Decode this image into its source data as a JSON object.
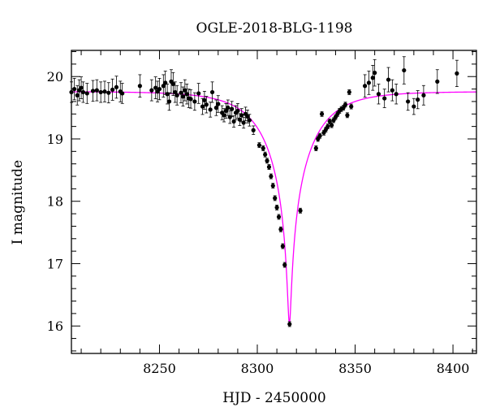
{
  "chart_data": {
    "type": "scatter",
    "title": "OGLE-2018-BLG-1198",
    "xlabel": "HJD - 2450000",
    "ylabel": "I magnitude",
    "xlim": [
      8205,
      8412
    ],
    "ylim": [
      20.42,
      15.56
    ],
    "y_inverted": true,
    "grid": false,
    "x_ticks": [
      8250,
      8300,
      8350,
      8400
    ],
    "y_ticks": [
      16,
      17,
      18,
      19,
      20
    ],
    "colors": {
      "points": "#000000",
      "model": "#ff00ff",
      "frame": "#000000"
    },
    "model": {
      "type": "microlensing-fit",
      "t0": 8316.4,
      "peak_mag": 16.03,
      "baseline_mag": 19.76
    },
    "series": [
      {
        "x": [
          8205,
          8206.5,
          8208,
          8209,
          8210,
          8211,
          8213,
          8216,
          8218,
          8220,
          8222,
          8224,
          8226,
          8228,
          8230,
          8231,
          8240,
          8246,
          8248,
          8249,
          8250,
          8252,
          8253,
          8254,
          8255,
          8256,
          8257,
          8258,
          8259,
          8261,
          8262,
          8263,
          8264,
          8265,
          8266,
          8268,
          8270,
          8272,
          8273,
          8274,
          8276,
          8277,
          8279,
          8280,
          8282,
          8283,
          8284,
          8285,
          8286,
          8287,
          8288,
          8289,
          8290,
          8291,
          8292,
          8293,
          8294,
          8295,
          8296,
          8298,
          8301,
          8303,
          8304,
          8305,
          8306,
          8307,
          8308,
          8309,
          8310,
          8311,
          8312,
          8313,
          8314,
          8316.5,
          8322,
          8330,
          8331,
          8332,
          8333,
          8334,
          8335,
          8336,
          8337,
          8338,
          8339,
          8340,
          8341,
          8342,
          8343,
          8344,
          8345,
          8346,
          8347,
          8348,
          8355,
          8357,
          8359,
          8360,
          8362,
          8365,
          8367,
          8369,
          8371,
          8375,
          8377,
          8380,
          8382,
          8385,
          8392,
          8402
        ],
        "y": [
          19.75,
          19.8,
          19.7,
          19.78,
          19.82,
          19.75,
          19.73,
          19.77,
          19.78,
          19.75,
          19.76,
          19.74,
          19.79,
          19.83,
          19.76,
          19.73,
          19.85,
          19.78,
          19.82,
          19.76,
          19.8,
          19.85,
          19.9,
          19.72,
          19.6,
          19.92,
          19.88,
          19.75,
          19.7,
          19.74,
          19.68,
          19.78,
          19.72,
          19.65,
          19.64,
          19.6,
          19.73,
          19.52,
          19.62,
          19.55,
          19.47,
          19.75,
          19.5,
          19.56,
          19.42,
          19.38,
          19.45,
          19.5,
          19.35,
          19.48,
          19.28,
          19.42,
          19.45,
          19.31,
          19.38,
          19.26,
          19.4,
          19.36,
          19.3,
          19.14,
          18.9,
          18.85,
          18.75,
          18.65,
          18.55,
          18.4,
          18.25,
          18.05,
          17.9,
          17.75,
          17.55,
          17.28,
          16.98,
          16.03,
          17.85,
          18.85,
          19.0,
          19.05,
          19.4,
          19.1,
          19.15,
          19.2,
          19.28,
          19.22,
          19.3,
          19.35,
          19.4,
          19.45,
          19.48,
          19.5,
          19.55,
          19.38,
          19.75,
          19.52,
          19.85,
          19.9,
          19.98,
          20.06,
          19.72,
          19.65,
          19.95,
          19.78,
          19.72,
          20.1,
          19.6,
          19.52,
          19.63,
          19.7,
          19.92,
          20.05
        ]
      }
    ]
  }
}
